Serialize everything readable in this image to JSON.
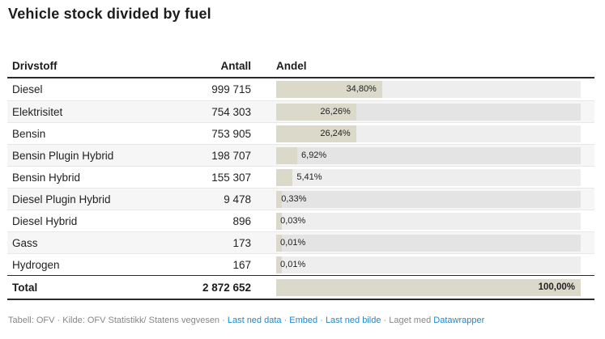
{
  "title": "Vehicle stock divided by fuel",
  "table": {
    "headers": {
      "fuel": "Drivstoff",
      "count": "Antall",
      "share": "Andel"
    },
    "rows": [
      {
        "fuel": "Diesel",
        "count": "999 715",
        "pct": 34.8,
        "pct_label": "34,80%"
      },
      {
        "fuel": "Elektrisitet",
        "count": "754 303",
        "pct": 26.26,
        "pct_label": "26,26%"
      },
      {
        "fuel": "Bensin",
        "count": "753 905",
        "pct": 26.24,
        "pct_label": "26,24%"
      },
      {
        "fuel": "Bensin Plugin Hybrid",
        "count": "198 707",
        "pct": 6.92,
        "pct_label": "6,92%"
      },
      {
        "fuel": "Bensin Hybrid",
        "count": "155 307",
        "pct": 5.41,
        "pct_label": "5,41%"
      },
      {
        "fuel": "Diesel Plugin Hybrid",
        "count": "9 478",
        "pct": 0.33,
        "pct_label": "0,33%"
      },
      {
        "fuel": "Diesel Hybrid",
        "count": "896",
        "pct": 0.03,
        "pct_label": "0,03%"
      },
      {
        "fuel": "Gass",
        "count": "173",
        "pct": 0.01,
        "pct_label": "0,01%"
      },
      {
        "fuel": "Hydrogen",
        "count": "167",
        "pct": 0.01,
        "pct_label": "0,01%"
      }
    ],
    "total": {
      "fuel": "Total",
      "count": "2 872 652",
      "pct": 100.0,
      "pct_label": "100,00%"
    }
  },
  "footer": {
    "credit": "Tabell: OFV · Kilde: OFV Statistikk/ Statens vegvesen",
    "sep": " · ",
    "link_data": "Last ned data",
    "link_embed": "Embed",
    "link_image": "Last ned bilde",
    "made_with": "Laget med ",
    "brand": "Datawrapper"
  },
  "colors": {
    "bar": "#dbd9ca",
    "track_light": "#eeeeee",
    "track_dark": "#e4e4e4",
    "stripe": "#f6f6f6",
    "rule_dark": "#2b2b2b",
    "link_blue": "#1e87cc",
    "footer_gray": "#878787"
  },
  "chart_data": {
    "type": "table",
    "title": "Vehicle stock divided by fuel",
    "columns": [
      "Drivstoff",
      "Antall",
      "Andel"
    ],
    "categories": [
      "Diesel",
      "Elektrisitet",
      "Bensin",
      "Bensin Plugin Hybrid",
      "Bensin Hybrid",
      "Diesel Plugin Hybrid",
      "Diesel Hybrid",
      "Gass",
      "Hydrogen"
    ],
    "counts": [
      999715,
      754303,
      753905,
      198707,
      155307,
      9478,
      896,
      173,
      167
    ],
    "shares_pct": [
      34.8,
      26.26,
      26.24,
      6.92,
      5.41,
      0.33,
      0.03,
      0.01,
      0.01
    ],
    "total": {
      "count": 2872652,
      "share_pct": 100.0
    },
    "bar_scale_pct": [
      0,
      100
    ],
    "notes": "Andel column rendered as in-cell horizontal bars on a gray track; zebra striping on alternate rows"
  }
}
